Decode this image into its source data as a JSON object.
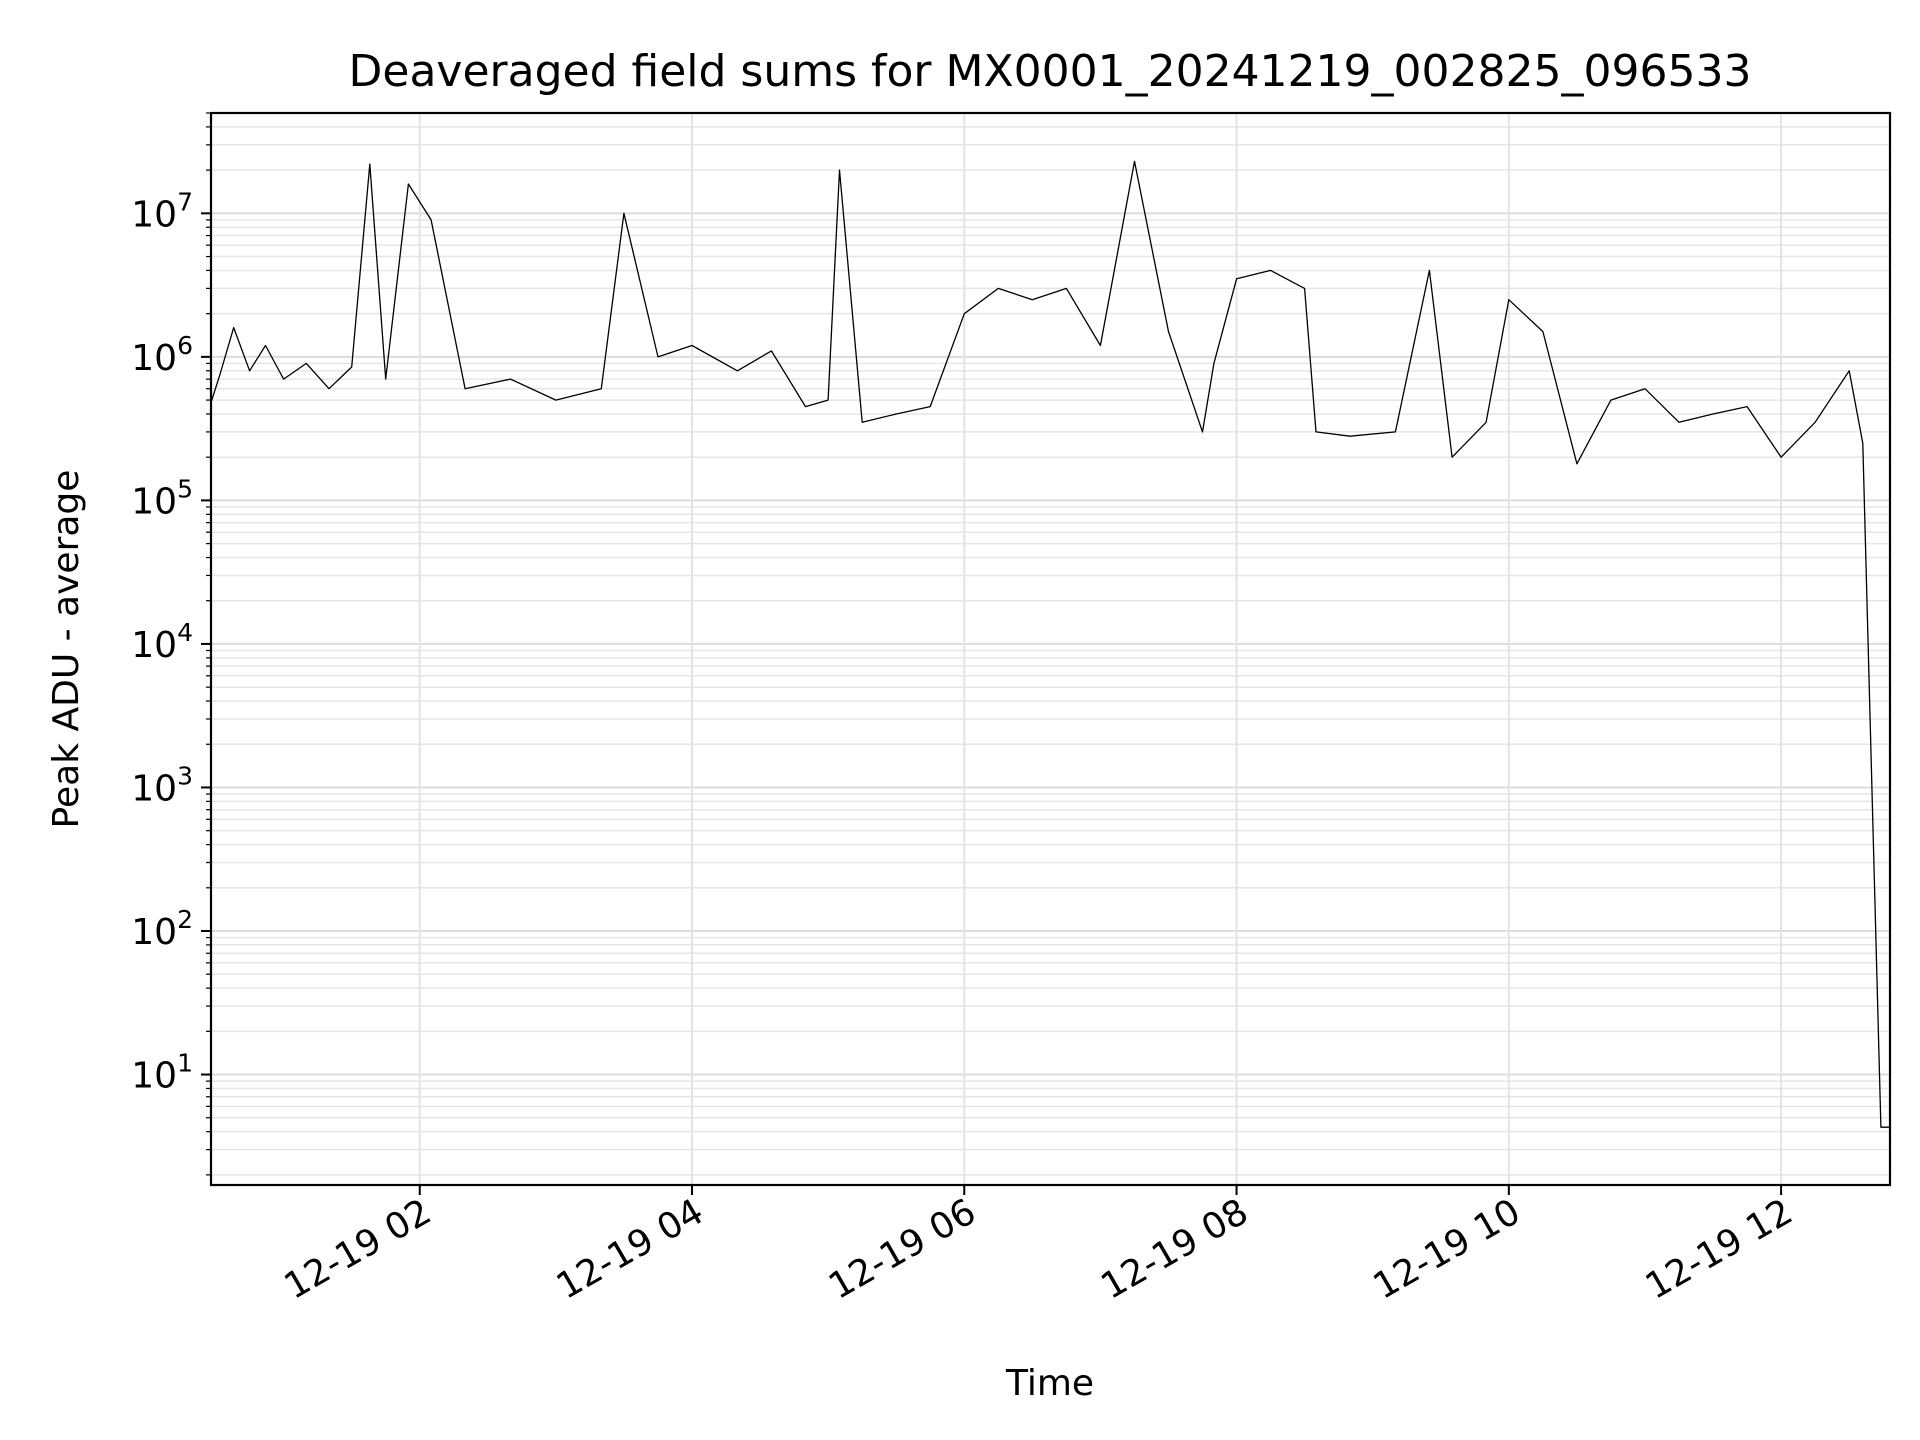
{
  "chart_data": {
    "type": "line",
    "title": "Deaveraged field sums for MX0001_20241219_002825_096533",
    "xlabel": "Time",
    "ylabel": "Peak ADU - average",
    "yscale": "log",
    "ylim": [
      1.7,
      50000000
    ],
    "xlim": [
      "2024-12-19 00:28",
      "2024-12-19 12:48"
    ],
    "grid": "major and minor, both axes",
    "line_color": "#000000",
    "x_ticks": [
      {
        "t": "2024-12-19 02:00",
        "label": "12-19 02"
      },
      {
        "t": "2024-12-19 04:00",
        "label": "12-19 04"
      },
      {
        "t": "2024-12-19 06:00",
        "label": "12-19 06"
      },
      {
        "t": "2024-12-19 08:00",
        "label": "12-19 08"
      },
      {
        "t": "2024-12-19 10:00",
        "label": "12-19 10"
      },
      {
        "t": "2024-12-19 12:00",
        "label": "12-19 12"
      }
    ],
    "y_ticks": [
      {
        "value": 10,
        "base": "10",
        "exp": "1"
      },
      {
        "value": 100,
        "base": "10",
        "exp": "2"
      },
      {
        "value": 1000,
        "base": "10",
        "exp": "3"
      },
      {
        "value": 10000,
        "base": "10",
        "exp": "4"
      },
      {
        "value": 100000,
        "base": "10",
        "exp": "5"
      },
      {
        "value": 1000000,
        "base": "10",
        "exp": "6"
      },
      {
        "value": 10000000,
        "base": "10",
        "exp": "7"
      }
    ],
    "series": [
      {
        "points": [
          [
            "2024-12-19 00:28",
            480000
          ],
          [
            "2024-12-19 00:32",
            760000
          ],
          [
            "2024-12-19 00:38",
            1600000
          ],
          [
            "2024-12-19 00:45",
            800000
          ],
          [
            "2024-12-19 00:52",
            1200000
          ],
          [
            "2024-12-19 01:00",
            700000
          ],
          [
            "2024-12-19 01:10",
            900000
          ],
          [
            "2024-12-19 01:20",
            600000
          ],
          [
            "2024-12-19 01:30",
            850000
          ],
          [
            "2024-12-19 01:38",
            22000000
          ],
          [
            "2024-12-19 01:45",
            700000
          ],
          [
            "2024-12-19 01:55",
            16000000
          ],
          [
            "2024-12-19 02:05",
            9000000
          ],
          [
            "2024-12-19 02:20",
            600000
          ],
          [
            "2024-12-19 02:40",
            700000
          ],
          [
            "2024-12-19 03:00",
            500000
          ],
          [
            "2024-12-19 03:20",
            600000
          ],
          [
            "2024-12-19 03:30",
            10000000
          ],
          [
            "2024-12-19 03:45",
            1000000
          ],
          [
            "2024-12-19 04:00",
            1200000
          ],
          [
            "2024-12-19 04:20",
            800000
          ],
          [
            "2024-12-19 04:35",
            1100000
          ],
          [
            "2024-12-19 04:50",
            450000
          ],
          [
            "2024-12-19 05:00",
            500000
          ],
          [
            "2024-12-19 05:05",
            20000000
          ],
          [
            "2024-12-19 05:15",
            350000
          ],
          [
            "2024-12-19 05:30",
            400000
          ],
          [
            "2024-12-19 05:45",
            450000
          ],
          [
            "2024-12-19 06:00",
            2000000
          ],
          [
            "2024-12-19 06:15",
            3000000
          ],
          [
            "2024-12-19 06:30",
            2500000
          ],
          [
            "2024-12-19 06:45",
            3000000
          ],
          [
            "2024-12-19 07:00",
            1200000
          ],
          [
            "2024-12-19 07:15",
            23000000
          ],
          [
            "2024-12-19 07:30",
            1500000
          ],
          [
            "2024-12-19 07:45",
            300000
          ],
          [
            "2024-12-19 07:50",
            900000
          ],
          [
            "2024-12-19 08:00",
            3500000
          ],
          [
            "2024-12-19 08:15",
            4000000
          ],
          [
            "2024-12-19 08:30",
            3000000
          ],
          [
            "2024-12-19 08:35",
            300000
          ],
          [
            "2024-12-19 08:50",
            280000
          ],
          [
            "2024-12-19 09:10",
            300000
          ],
          [
            "2024-12-19 09:25",
            4000000
          ],
          [
            "2024-12-19 09:35",
            200000
          ],
          [
            "2024-12-19 09:50",
            350000
          ],
          [
            "2024-12-19 10:00",
            2500000
          ],
          [
            "2024-12-19 10:15",
            1500000
          ],
          [
            "2024-12-19 10:30",
            180000
          ],
          [
            "2024-12-19 10:45",
            500000
          ],
          [
            "2024-12-19 11:00",
            600000
          ],
          [
            "2024-12-19 11:15",
            350000
          ],
          [
            "2024-12-19 11:30",
            400000
          ],
          [
            "2024-12-19 11:45",
            450000
          ],
          [
            "2024-12-19 12:00",
            200000
          ],
          [
            "2024-12-19 12:15",
            350000
          ],
          [
            "2024-12-19 12:30",
            800000
          ],
          [
            "2024-12-19 12:36",
            250000
          ],
          [
            "2024-12-19 12:44",
            4.3
          ],
          [
            "2024-12-19 12:48",
            4.3
          ]
        ]
      }
    ]
  }
}
